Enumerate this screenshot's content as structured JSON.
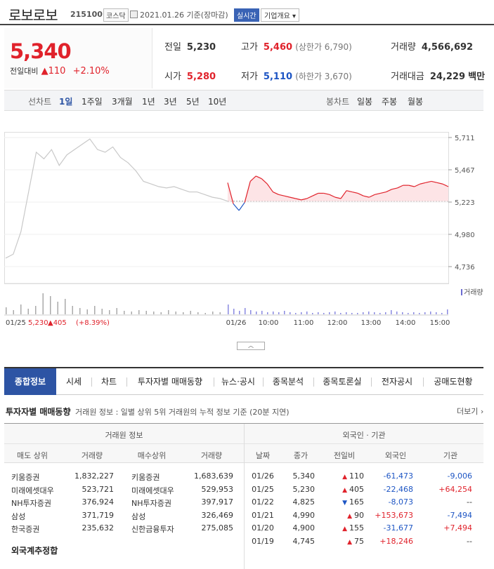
{
  "header": {
    "name": "로보로보",
    "code": "215100",
    "market": "코스닥",
    "asof": "2021.01.26 기준(장마감)",
    "realtime": "실시간",
    "company": "기업개요 ▾"
  },
  "price": {
    "current": "5,340",
    "change_label": "전일대비",
    "change": "110",
    "rate": "+2.10%"
  },
  "quote": {
    "prev_label": "전일",
    "prev": "5,230",
    "high_label": "고가",
    "high": "5,460",
    "upper": "(상한가 6,790)",
    "volume_label": "거래량",
    "volume": "4,566,692",
    "open_label": "시가",
    "open": "5,280",
    "low_label": "저가",
    "low": "5,110",
    "lower": "(하한가 3,670)",
    "amount_label": "거래대금",
    "amount": "24,229",
    "amount_unit": "백만"
  },
  "period": {
    "label": "선차트",
    "items": [
      "1일",
      "1주일",
      "3개월",
      "1년",
      "3년",
      "5년",
      "10년"
    ],
    "candle_label": "봉차트",
    "candles": [
      "일봉",
      "주봉",
      "월봉"
    ]
  },
  "chart_data": {
    "type": "line",
    "yticks": [
      "5,711",
      "5,467",
      "5,223",
      "4,980",
      "4,736"
    ],
    "ylim": [
      4736,
      5711
    ],
    "xticks": [
      "01/25",
      "01/26",
      "10:00",
      "11:00",
      "12:00",
      "13:00",
      "14:00",
      "15:00"
    ],
    "volume_label": "거래량",
    "prev_close": 5230,
    "prev_day_text": "01/25",
    "prev_day_price": "5,230",
    "prev_day_change": "405",
    "prev_day_rate": "(+8.39%)",
    "series": [
      {
        "values": [
          4800,
          4830,
          5000,
          5300,
          5600,
          5550,
          5620,
          5500,
          5580,
          5620,
          5660,
          5700,
          5620,
          5600,
          5640,
          5560,
          5520,
          5460,
          5380,
          5360,
          5340,
          5330,
          5340,
          5320,
          5300,
          5300,
          5280,
          5260,
          5250,
          5230
        ]
      },
      {
        "values": [
          5370,
          5210,
          5160,
          5220,
          5380,
          5420,
          5400,
          5360,
          5300,
          5280,
          5270,
          5260,
          5250,
          5240,
          5250,
          5270,
          5290,
          5290,
          5280,
          5260,
          5250,
          5310,
          5300,
          5290,
          5270,
          5260,
          5280,
          5290,
          5300,
          5320,
          5330,
          5350,
          5350,
          5340,
          5360,
          5370,
          5380,
          5370,
          5360,
          5340
        ]
      }
    ]
  },
  "tabs": [
    "종합정보",
    "시세",
    "차트",
    "투자자별 매매동향",
    "뉴스·공시",
    "종목분석",
    "종목토론실",
    "전자공시",
    "공매도현황"
  ],
  "section": {
    "title": "투자자별 매매동향",
    "desc": "거래원 정보 : 일별 상위 5위 거래원의 누적 정보 기준 (20분 지연)",
    "more": "더보기 ›"
  },
  "table": {
    "group_left": "거래원 정보",
    "group_right": "외국인 · 기관",
    "cols_left": [
      "매도 상위",
      "거래량",
      "매수상위",
      "거래량"
    ],
    "cols_right": [
      "날짜",
      "종가",
      "전일비",
      "외국인",
      "기관"
    ],
    "broker_rows": [
      [
        "키움증권",
        "1,832,227",
        "키움증권",
        "1,683,639"
      ],
      [
        "미래에셋대우",
        "523,721",
        "미래에셋대우",
        "529,953"
      ],
      [
        "NH투자증권",
        "376,924",
        "NH투자증권",
        "397,917"
      ],
      [
        "삼성",
        "371,719",
        "삼성",
        "326,469"
      ],
      [
        "한국증권",
        "235,632",
        "신한금융투자",
        "275,085"
      ]
    ],
    "foreign_total": "외국계추정합",
    "inst_rows": [
      {
        "date": "01/26",
        "close": "5,340",
        "dir": "up",
        "chg": "110",
        "foreign": "-61,473",
        "fdir": "dn",
        "inst": "-9,006",
        "idir": "dn"
      },
      {
        "date": "01/25",
        "close": "5,230",
        "dir": "up",
        "chg": "405",
        "foreign": "-22,468",
        "fdir": "dn",
        "inst": "+64,254",
        "idir": "up"
      },
      {
        "date": "01/22",
        "close": "4,825",
        "dir": "dn",
        "chg": "165",
        "foreign": "-8,073",
        "fdir": "dn",
        "inst": "--",
        "idir": "none"
      },
      {
        "date": "01/21",
        "close": "4,990",
        "dir": "up",
        "chg": "90",
        "foreign": "+153,673",
        "fdir": "up",
        "inst": "-7,494",
        "idir": "dn"
      },
      {
        "date": "01/20",
        "close": "4,900",
        "dir": "up",
        "chg": "155",
        "foreign": "-31,677",
        "fdir": "dn",
        "inst": "+7,494",
        "idir": "up"
      },
      {
        "date": "01/19",
        "close": "4,745",
        "dir": "up",
        "chg": "75",
        "foreign": "+18,246",
        "fdir": "up",
        "inst": "--",
        "idir": "none"
      }
    ]
  }
}
